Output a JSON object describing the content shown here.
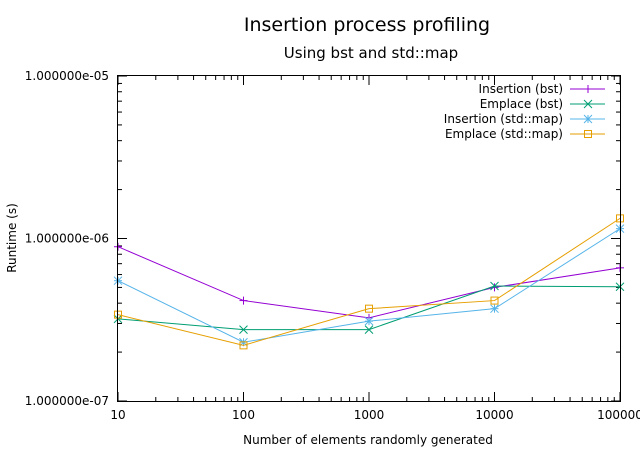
{
  "chart_data": {
    "type": "line",
    "title": "Insertion process profiling",
    "subtitle": "Using bst and std::map",
    "xlabel": "Number of elements randomly generated",
    "ylabel": "Runtime (s)",
    "x_scale": "log",
    "y_scale": "log",
    "xlim": [
      10,
      100000
    ],
    "ylim": [
      1e-07,
      1e-05
    ],
    "x_ticks": [
      "10",
      "100",
      "1000",
      "10000",
      "100000"
    ],
    "y_ticks": [
      "1.000000e-07",
      "1.000000e-06",
      "1.000000e-05"
    ],
    "grid": false,
    "legend_position": "top-right",
    "x": [
      10,
      100,
      1000,
      10000,
      100000
    ],
    "series": [
      {
        "name": "Insertion (bst)",
        "color": "#9400d3",
        "marker": "plus",
        "values": [
          8.9e-07,
          4.15e-07,
          3.25e-07,
          5e-07,
          6.6e-07
        ]
      },
      {
        "name": "Emplace (bst)",
        "color": "#009e73",
        "marker": "cross",
        "values": [
          3.2e-07,
          2.75e-07,
          2.75e-07,
          5.1e-07,
          5.05e-07
        ]
      },
      {
        "name": "Insertion (std::map)",
        "color": "#56b4e9",
        "marker": "star",
        "values": [
          5.5e-07,
          2.3e-07,
          3.1e-07,
          3.7e-07,
          1.15e-06
        ]
      },
      {
        "name": "Emplace (std::map)",
        "color": "#e69f00",
        "marker": "box",
        "values": [
          3.4e-07,
          2.2e-07,
          3.7e-07,
          4.15e-07,
          1.33e-06
        ]
      }
    ]
  }
}
